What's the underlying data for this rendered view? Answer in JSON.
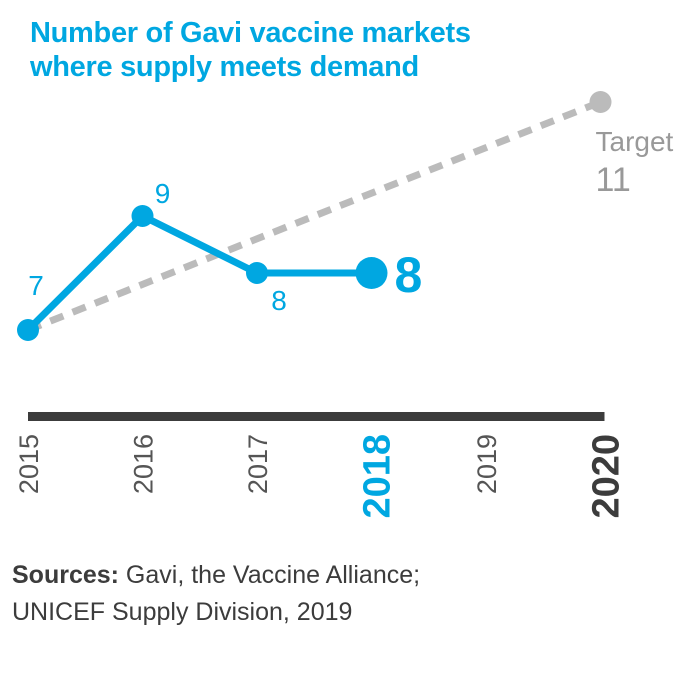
{
  "title": {
    "line1": "Number of Gavi vaccine markets",
    "line2": "where supply meets demand"
  },
  "colors": {
    "actual": "#00a7e1",
    "target": "#bbbbbb",
    "target_text": "#999999",
    "axis": "#3c3c3c",
    "year_text": "#555555"
  },
  "chart_data": {
    "type": "line",
    "title": "Number of Gavi vaccine markets where supply meets demand",
    "x": [
      "2015",
      "2016",
      "2017",
      "2018",
      "2019",
      "2020"
    ],
    "highlight_years": [
      "2018",
      "2020"
    ],
    "ylim": [
      5,
      12
    ],
    "series": [
      {
        "style": "solid",
        "color": "#00a7e1",
        "points": [
          {
            "x": "2015",
            "y": 7,
            "label": "7"
          },
          {
            "x": "2016",
            "y": 9,
            "label": "9"
          },
          {
            "x": "2017",
            "y": 8,
            "label": "8"
          },
          {
            "x": "2018",
            "y": 8,
            "label": "8"
          }
        ]
      },
      {
        "name": "Target",
        "style": "dotted",
        "color": "#bbbbbb",
        "points": [
          {
            "x": "2015",
            "y": 7
          },
          {
            "x": "2020",
            "y": 11,
            "label": "11"
          }
        ]
      }
    ],
    "annotations": [
      {
        "text": "Target",
        "x": "2020",
        "y": 11
      },
      {
        "text": "11",
        "x": "2020",
        "y": 11
      }
    ]
  },
  "sources": {
    "label": "Sources:",
    "text1": " Gavi, the Vaccine Alliance;",
    "text2": "UNICEF Supply Division, 2019"
  }
}
